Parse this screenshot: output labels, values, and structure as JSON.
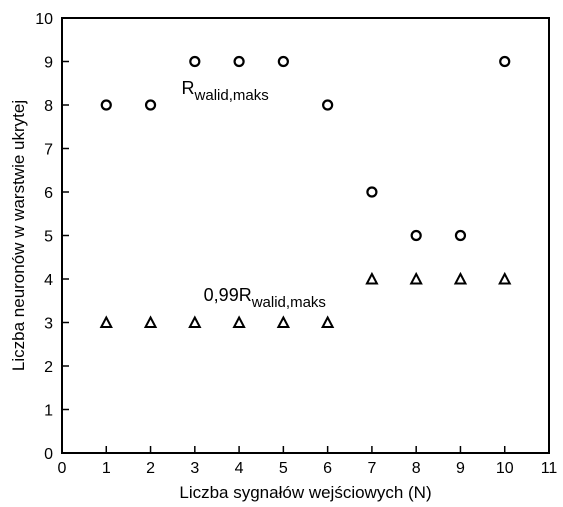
{
  "chart_data": {
    "type": "scatter",
    "xlabel": "Liczba sygnałów wejściowych (N)",
    "ylabel": "Liczba neuronów w warstwie ukrytej",
    "xlim": [
      0,
      11
    ],
    "ylim": [
      0,
      10
    ],
    "xticks": [
      "0",
      "1",
      "2",
      "3",
      "4",
      "5",
      "6",
      "7",
      "8",
      "9",
      "10",
      "11"
    ],
    "yticks": [
      "0",
      "1",
      "2",
      "3",
      "4",
      "5",
      "6",
      "7",
      "8",
      "9",
      "10"
    ],
    "grid": false,
    "series": [
      {
        "marker": "circle",
        "points": [
          {
            "x": 1,
            "y": 8
          },
          {
            "x": 2,
            "y": 8
          },
          {
            "x": 3,
            "y": 9
          },
          {
            "x": 4,
            "y": 9
          },
          {
            "x": 5,
            "y": 9
          },
          {
            "x": 6,
            "y": 8
          },
          {
            "x": 7,
            "y": 6
          },
          {
            "x": 8,
            "y": 5
          },
          {
            "x": 9,
            "y": 5
          },
          {
            "x": 10,
            "y": 9
          }
        ]
      },
      {
        "marker": "triangle",
        "points": [
          {
            "x": 1,
            "y": 3
          },
          {
            "x": 2,
            "y": 3
          },
          {
            "x": 3,
            "y": 3
          },
          {
            "x": 4,
            "y": 3
          },
          {
            "x": 5,
            "y": 3
          },
          {
            "x": 6,
            "y": 3
          },
          {
            "x": 7,
            "y": 4
          },
          {
            "x": 8,
            "y": 4
          },
          {
            "x": 9,
            "y": 4
          },
          {
            "x": 10,
            "y": 4
          }
        ]
      }
    ],
    "annotations": [
      {
        "main": "R",
        "sub": "walid,maks",
        "x": 2.7,
        "y": 8.25
      },
      {
        "main": "0,99R",
        "sub": "walid,maks",
        "x": 3.2,
        "y": 3.5
      }
    ]
  }
}
